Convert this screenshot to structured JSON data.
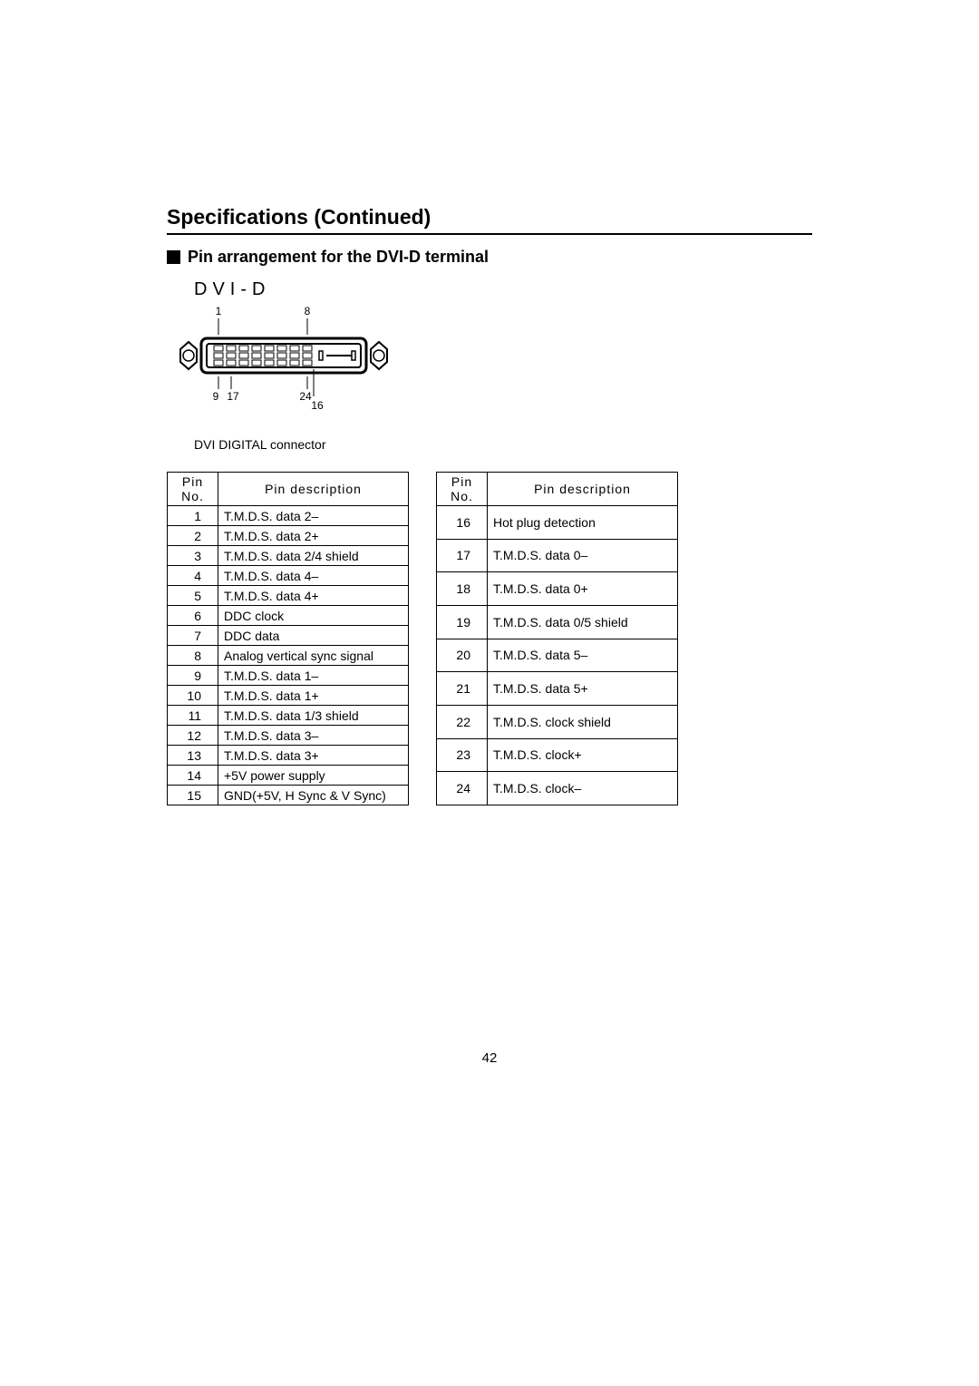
{
  "page": {
    "title": "Specifications (Continued)",
    "subtitle": "Pin arrangement for the DVI-D terminal",
    "page_number": "42"
  },
  "diagram": {
    "label": "DVI-D",
    "caption": "DVI DIGITAL connector",
    "corner_labels": {
      "top_left": "1",
      "top_right": "8",
      "bottom_left": "9",
      "bottom_mid_left": "17",
      "bottom_right": "24",
      "bottom_mid_right": "16"
    },
    "colors": {
      "stroke": "#000000",
      "fill": "#ffffff"
    }
  },
  "tables": {
    "headers": {
      "pin_no": "Pin No.",
      "pin_desc": "Pin description"
    },
    "left": [
      {
        "no": "1",
        "desc": "T.M.D.S. data 2–"
      },
      {
        "no": "2",
        "desc": "T.M.D.S. data 2+"
      },
      {
        "no": "3",
        "desc": "T.M.D.S. data 2/4 shield"
      },
      {
        "no": "4",
        "desc": "T.M.D.S. data 4–"
      },
      {
        "no": "5",
        "desc": "T.M.D.S. data 4+"
      },
      {
        "no": "6",
        "desc": "DDC clock"
      },
      {
        "no": "7",
        "desc": "DDC data"
      },
      {
        "no": "8",
        "desc": "Analog vertical sync signal"
      },
      {
        "no": "9",
        "desc": "T.M.D.S. data 1–"
      },
      {
        "no": "10",
        "desc": "T.M.D.S. data 1+"
      },
      {
        "no": "11",
        "desc": "T.M.D.S. data 1/3 shield"
      },
      {
        "no": "12",
        "desc": "T.M.D.S. data 3–"
      },
      {
        "no": "13",
        "desc": "T.M.D.S. data 3+"
      },
      {
        "no": "14",
        "desc": "+5V power supply"
      },
      {
        "no": "15",
        "desc": "GND(+5V, H Sync & V Sync)"
      }
    ],
    "right": [
      {
        "no": "16",
        "desc": "Hot plug detection"
      },
      {
        "no": "17",
        "desc": "T.M.D.S. data 0–"
      },
      {
        "no": "18",
        "desc": "T.M.D.S. data 0+"
      },
      {
        "no": "19",
        "desc": "T.M.D.S. data 0/5 shield"
      },
      {
        "no": "20",
        "desc": "T.M.D.S. data 5–"
      },
      {
        "no": "21",
        "desc": "T.M.D.S. data 5+"
      },
      {
        "no": "22",
        "desc": "T.M.D.S. clock shield"
      },
      {
        "no": "23",
        "desc": "T.M.D.S. clock+"
      },
      {
        "no": "24",
        "desc": "T.M.D.S. clock–"
      }
    ]
  }
}
